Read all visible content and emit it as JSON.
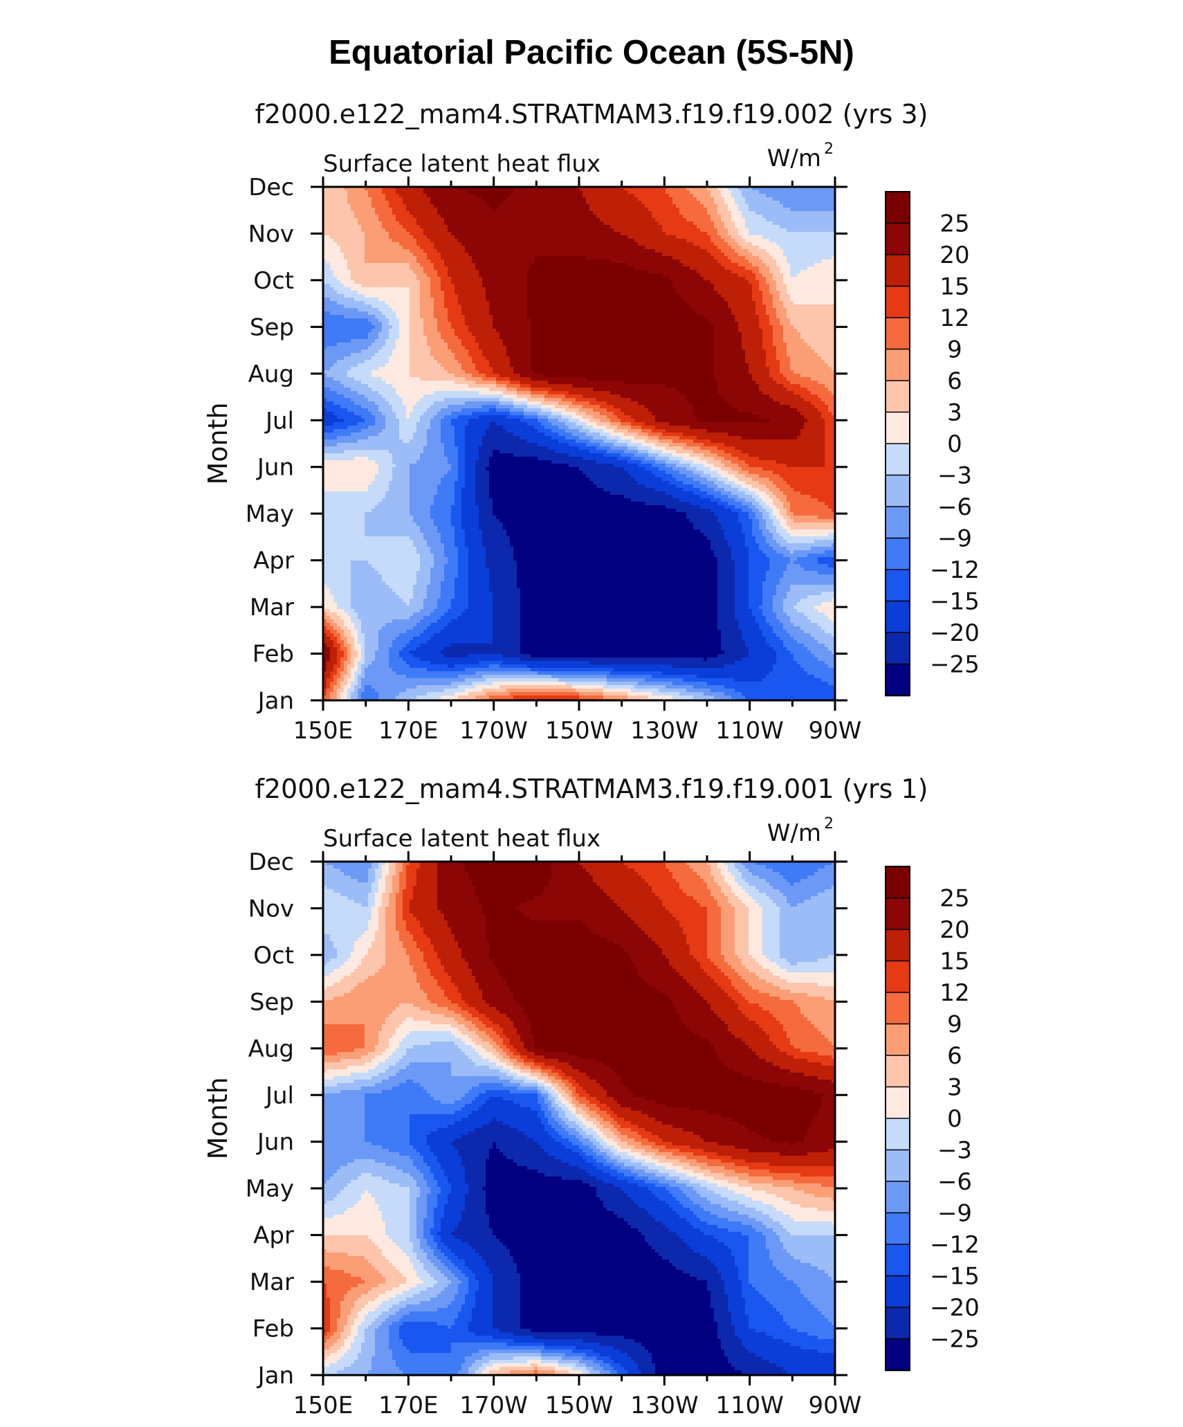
{
  "figure": {
    "title": "Equatorial Pacific Ocean (5S-5N)"
  },
  "chart_data": [
    {
      "type": "heatmap",
      "title": "f2000.e122_mam4.STRATMAM3.f19.f19.002 (yrs 3)",
      "variable_label": "Surface latent heat flux",
      "units_label": "W/m",
      "units_superscript": "2",
      "ylabel": "Month",
      "xlabel": "",
      "x_tick_labels": [
        "150E",
        "170E",
        "170W",
        "150W",
        "130W",
        "110W",
        "90W"
      ],
      "x": [
        150,
        170,
        190,
        210,
        230,
        250,
        270
      ],
      "xlim": [
        150,
        270
      ],
      "y": [
        "Jan",
        "Feb",
        "Mar",
        "Apr",
        "May",
        "Jun",
        "Jul",
        "Aug",
        "Sep",
        "Oct",
        "Nov",
        "Dec"
      ],
      "z": [
        [
          12,
          -12,
          -3,
          3,
          12,
          18,
          15,
          9,
          3,
          -3,
          -12,
          -15,
          -15
        ],
        [
          26,
          -3,
          -15,
          -22,
          -20,
          -28,
          -28,
          -28,
          -28,
          -28,
          -20,
          -12,
          -6
        ],
        [
          3,
          -6,
          -3,
          -12,
          -20,
          -28,
          -28,
          -28,
          -28,
          -28,
          -15,
          -3,
          3
        ],
        [
          -3,
          -3,
          0,
          -10,
          -22,
          -28,
          -28,
          -28,
          -28,
          -28,
          -15,
          -9,
          -15
        ],
        [
          -3,
          -3,
          -6,
          -12,
          -25,
          -28,
          -28,
          -28,
          -28,
          -22,
          -12,
          9,
          12
        ],
        [
          3,
          3,
          -6,
          -9,
          -28,
          -28,
          -25,
          -20,
          -10,
          0,
          12,
          15,
          15
        ],
        [
          -18,
          -12,
          0,
          -12,
          -20,
          -12,
          0,
          12,
          22,
          26,
          26,
          24,
          12
        ],
        [
          -6,
          0,
          3,
          6,
          15,
          26,
          28,
          28,
          26,
          26,
          20,
          9,
          6
        ],
        [
          -12,
          -12,
          3,
          12,
          20,
          26,
          28,
          28,
          28,
          26,
          18,
          6,
          3
        ],
        [
          -3,
          6,
          3,
          15,
          22,
          26,
          28,
          28,
          26,
          20,
          15,
          0,
          3
        ],
        [
          3,
          6,
          12,
          20,
          24,
          24,
          22,
          20,
          15,
          12,
          0,
          -3,
          -3
        ],
        [
          3,
          9,
          18,
          25,
          26,
          24,
          20,
          15,
          12,
          6,
          -6,
          -9,
          -9
        ]
      ],
      "legend": {
        "labels": [
          "25",
          "20",
          "15",
          "12",
          "9",
          "6",
          "3",
          "0",
          "−3",
          "−6",
          "−9",
          "−12",
          "−15",
          "−20",
          "−25"
        ],
        "levels": [
          -25,
          -20,
          -15,
          -12,
          -9,
          -6,
          -3,
          0,
          3,
          6,
          9,
          12,
          15,
          20,
          25
        ],
        "colors": [
          "#000080",
          "#0c28ad",
          "#0b3dd8",
          "#1a56f0",
          "#3f7af7",
          "#6c99f5",
          "#9bbcf7",
          "#c6dbfa",
          "#fde9df",
          "#fdc5ac",
          "#fb9e75",
          "#f56b3d",
          "#e53a14",
          "#bd1f07",
          "#8c0606",
          "#7a0000"
        ]
      }
    },
    {
      "type": "heatmap",
      "title": "f2000.e122_mam4.STRATMAM3.f19.f19.001 (yrs 1)",
      "variable_label": "Surface latent heat flux",
      "units_label": "W/m",
      "units_superscript": "2",
      "ylabel": "Month",
      "xlabel": "",
      "x_tick_labels": [
        "150E",
        "170E",
        "170W",
        "150W",
        "130W",
        "110W",
        "90W"
      ],
      "x": [
        150,
        170,
        190,
        210,
        230,
        250,
        270
      ],
      "xlim": [
        150,
        270
      ],
      "y": [
        "Jan",
        "Feb",
        "Mar",
        "Apr",
        "May",
        "Jun",
        "Jul",
        "Aug",
        "Sep",
        "Oct",
        "Nov",
        "Dec"
      ],
      "z": [
        [
          -3,
          -6,
          -9,
          -12,
          6,
          12,
          3,
          -12,
          -28,
          -28,
          -25,
          -20,
          -20
        ],
        [
          15,
          -3,
          -15,
          -12,
          -20,
          -28,
          -28,
          -28,
          -28,
          -28,
          -15,
          -12,
          -9
        ],
        [
          12,
          9,
          3,
          -6,
          -20,
          -28,
          -28,
          -28,
          -28,
          -25,
          -12,
          -9,
          -6
        ],
        [
          3,
          3,
          -3,
          -20,
          -25,
          -28,
          -28,
          -28,
          -22,
          -15,
          -12,
          -3,
          -3
        ],
        [
          -6,
          0,
          -3,
          -15,
          -28,
          -28,
          -28,
          -20,
          -12,
          -3,
          3,
          6,
          9
        ],
        [
          -9,
          -9,
          -12,
          -20,
          -25,
          -20,
          -10,
          6,
          15,
          20,
          24,
          26,
          22
        ],
        [
          -6,
          -9,
          -12,
          -6,
          -15,
          -12,
          12,
          24,
          28,
          28,
          28,
          28,
          24
        ],
        [
          12,
          9,
          -3,
          -6,
          6,
          26,
          28,
          28,
          28,
          26,
          20,
          12,
          9
        ],
        [
          6,
          9,
          6,
          12,
          22,
          28,
          28,
          28,
          26,
          20,
          12,
          9,
          6
        ],
        [
          -6,
          3,
          9,
          18,
          26,
          28,
          28,
          26,
          20,
          12,
          3,
          -6,
          -3
        ],
        [
          0,
          -3,
          15,
          22,
          26,
          24,
          24,
          20,
          15,
          12,
          3,
          -6,
          -3
        ],
        [
          -6,
          -9,
          12,
          24,
          28,
          28,
          20,
          15,
          12,
          6,
          -9,
          -12,
          -9
        ]
      ],
      "legend": {
        "labels": [
          "25",
          "20",
          "15",
          "12",
          "9",
          "6",
          "3",
          "0",
          "−3",
          "−6",
          "−9",
          "−12",
          "−15",
          "−20",
          "−25"
        ],
        "levels": [
          -25,
          -20,
          -15,
          -12,
          -9,
          -6,
          -3,
          0,
          3,
          6,
          9,
          12,
          15,
          20,
          25
        ],
        "colors": [
          "#000080",
          "#0c28ad",
          "#0b3dd8",
          "#1a56f0",
          "#3f7af7",
          "#6c99f5",
          "#9bbcf7",
          "#c6dbfa",
          "#fde9df",
          "#fdc5ac",
          "#fb9e75",
          "#f56b3d",
          "#e53a14",
          "#bd1f07",
          "#8c0606",
          "#7a0000"
        ]
      }
    }
  ]
}
